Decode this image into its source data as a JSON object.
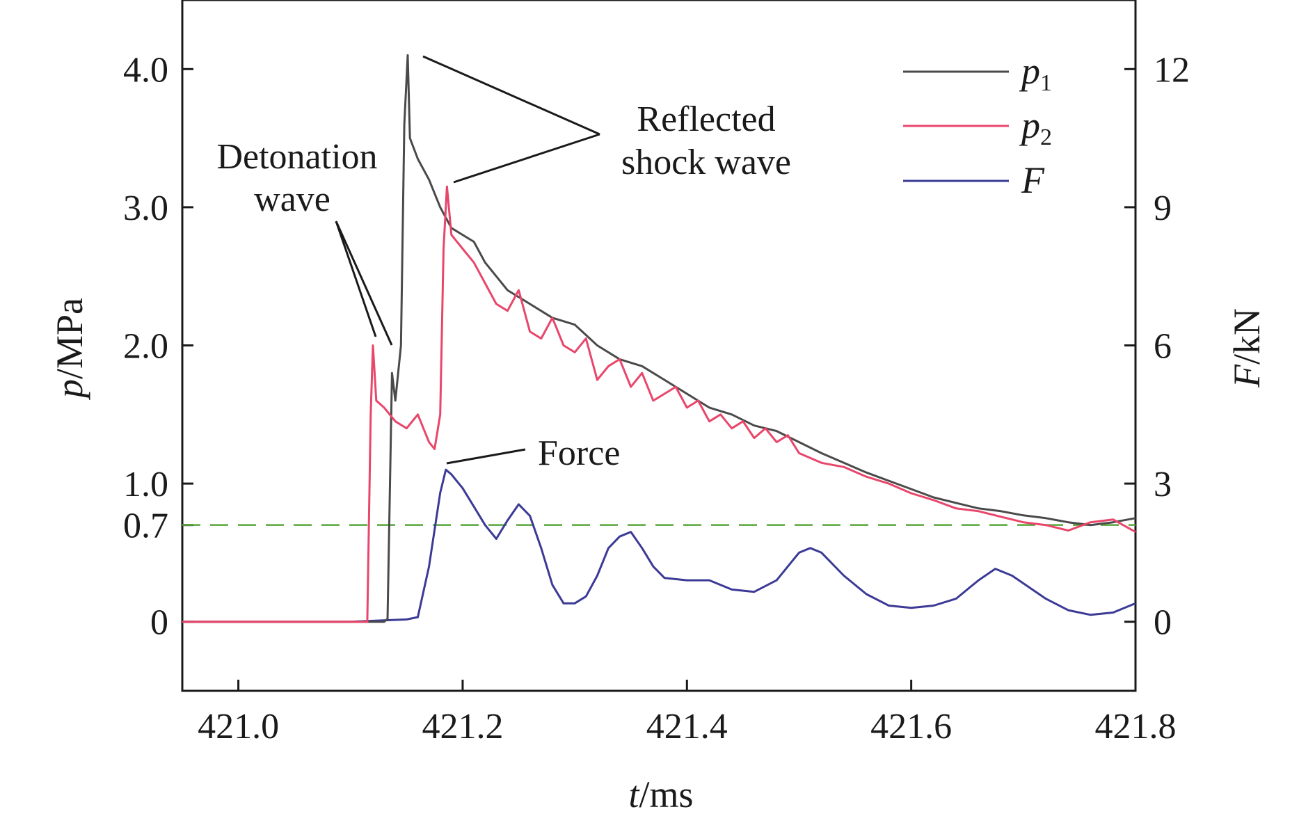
{
  "chart_data": {
    "type": "line",
    "x_axis": {
      "var": "t",
      "unit": "/ms",
      "lim": [
        420.95,
        421.8
      ],
      "ticks": [
        421.0,
        421.2,
        421.4,
        421.6,
        421.8
      ],
      "tick_labels": [
        "421.0",
        "421.2",
        "421.4",
        "421.6",
        "421.8"
      ]
    },
    "y_left": {
      "var": "p",
      "unit": "/MPa",
      "lim": [
        -0.5,
        4.5
      ],
      "ticks": [
        0,
        0.7,
        1.0,
        2.0,
        3.0,
        4.0
      ],
      "tick_labels": [
        "0",
        "0.7",
        "1.0",
        "2.0",
        "3.0",
        "4.0"
      ]
    },
    "y_right": {
      "var": "F",
      "unit": "/kN",
      "lim": [
        -1.5,
        13.5
      ],
      "ticks": [
        0,
        3,
        6,
        9,
        12
      ],
      "tick_labels": [
        "0",
        "3",
        "6",
        "9",
        "12"
      ]
    },
    "reference_line": {
      "y": 0.7,
      "axis": "left",
      "style": "dashed",
      "color": "#5aa83c"
    },
    "legend_position": "top-right",
    "series": [
      {
        "name": "p",
        "subscript": "1",
        "axis": "left",
        "color": "#4a4a4a",
        "points": [
          [
            420.95,
            0.0
          ],
          [
            421.13,
            0.0
          ],
          [
            421.133,
            0.02
          ],
          [
            421.137,
            1.8
          ],
          [
            421.14,
            1.6
          ],
          [
            421.145,
            2.0
          ],
          [
            421.148,
            3.6
          ],
          [
            421.151,
            4.1
          ],
          [
            421.153,
            3.5
          ],
          [
            421.16,
            3.35
          ],
          [
            421.17,
            3.2
          ],
          [
            421.18,
            3.0
          ],
          [
            421.19,
            2.85
          ],
          [
            421.2,
            2.8
          ],
          [
            421.21,
            2.75
          ],
          [
            421.22,
            2.6
          ],
          [
            421.24,
            2.4
          ],
          [
            421.26,
            2.3
          ],
          [
            421.28,
            2.2
          ],
          [
            421.3,
            2.15
          ],
          [
            421.32,
            2.0
          ],
          [
            421.34,
            1.9
          ],
          [
            421.36,
            1.85
          ],
          [
            421.38,
            1.75
          ],
          [
            421.4,
            1.65
          ],
          [
            421.42,
            1.55
          ],
          [
            421.44,
            1.5
          ],
          [
            421.46,
            1.42
          ],
          [
            421.48,
            1.38
          ],
          [
            421.5,
            1.3
          ],
          [
            421.52,
            1.22
          ],
          [
            421.54,
            1.15
          ],
          [
            421.56,
            1.08
          ],
          [
            421.58,
            1.02
          ],
          [
            421.6,
            0.96
          ],
          [
            421.62,
            0.9
          ],
          [
            421.64,
            0.86
          ],
          [
            421.66,
            0.82
          ],
          [
            421.68,
            0.8
          ],
          [
            421.7,
            0.77
          ],
          [
            421.72,
            0.75
          ],
          [
            421.74,
            0.72
          ],
          [
            421.76,
            0.7
          ],
          [
            421.78,
            0.72
          ],
          [
            421.8,
            0.75
          ]
        ]
      },
      {
        "name": "p",
        "subscript": "2",
        "axis": "left",
        "color": "#e8466b",
        "points": [
          [
            420.95,
            0.0
          ],
          [
            421.1,
            0.0
          ],
          [
            421.115,
            0.0
          ],
          [
            421.118,
            1.5
          ],
          [
            421.12,
            2.0
          ],
          [
            421.123,
            1.6
          ],
          [
            421.13,
            1.55
          ],
          [
            421.14,
            1.45
          ],
          [
            421.15,
            1.4
          ],
          [
            421.16,
            1.5
          ],
          [
            421.17,
            1.3
          ],
          [
            421.175,
            1.25
          ],
          [
            421.18,
            1.5
          ],
          [
            421.183,
            2.7
          ],
          [
            421.186,
            3.15
          ],
          [
            421.19,
            2.8
          ],
          [
            421.2,
            2.7
          ],
          [
            421.21,
            2.6
          ],
          [
            421.22,
            2.45
          ],
          [
            421.23,
            2.3
          ],
          [
            421.24,
            2.25
          ],
          [
            421.25,
            2.4
          ],
          [
            421.26,
            2.1
          ],
          [
            421.27,
            2.05
          ],
          [
            421.28,
            2.2
          ],
          [
            421.29,
            2.0
          ],
          [
            421.3,
            1.95
          ],
          [
            421.31,
            2.05
          ],
          [
            421.32,
            1.75
          ],
          [
            421.33,
            1.85
          ],
          [
            421.34,
            1.9
          ],
          [
            421.35,
            1.7
          ],
          [
            421.36,
            1.8
          ],
          [
            421.37,
            1.6
          ],
          [
            421.38,
            1.65
          ],
          [
            421.39,
            1.7
          ],
          [
            421.4,
            1.55
          ],
          [
            421.41,
            1.6
          ],
          [
            421.42,
            1.45
          ],
          [
            421.43,
            1.5
          ],
          [
            421.44,
            1.4
          ],
          [
            421.45,
            1.45
          ],
          [
            421.46,
            1.33
          ],
          [
            421.47,
            1.4
          ],
          [
            421.48,
            1.3
          ],
          [
            421.49,
            1.35
          ],
          [
            421.5,
            1.22
          ],
          [
            421.52,
            1.15
          ],
          [
            421.54,
            1.12
          ],
          [
            421.56,
            1.05
          ],
          [
            421.58,
            1.0
          ],
          [
            421.6,
            0.93
          ],
          [
            421.62,
            0.88
          ],
          [
            421.64,
            0.82
          ],
          [
            421.66,
            0.8
          ],
          [
            421.68,
            0.76
          ],
          [
            421.7,
            0.72
          ],
          [
            421.72,
            0.7
          ],
          [
            421.74,
            0.66
          ],
          [
            421.76,
            0.72
          ],
          [
            421.78,
            0.74
          ],
          [
            421.8,
            0.65
          ]
        ]
      },
      {
        "name": "F",
        "subscript": "",
        "axis": "right",
        "color": "#3b3a96",
        "points": [
          [
            420.95,
            0.0
          ],
          [
            421.1,
            0.0
          ],
          [
            421.15,
            0.05
          ],
          [
            421.16,
            0.1
          ],
          [
            421.17,
            1.2
          ],
          [
            421.18,
            2.8
          ],
          [
            421.185,
            3.3
          ],
          [
            421.19,
            3.2
          ],
          [
            421.2,
            2.9
          ],
          [
            421.21,
            2.5
          ],
          [
            421.22,
            2.1
          ],
          [
            421.23,
            1.8
          ],
          [
            421.24,
            2.2
          ],
          [
            421.25,
            2.55
          ],
          [
            421.26,
            2.3
          ],
          [
            421.27,
            1.6
          ],
          [
            421.28,
            0.8
          ],
          [
            421.29,
            0.4
          ],
          [
            421.3,
            0.4
          ],
          [
            421.31,
            0.55
          ],
          [
            421.32,
            1.0
          ],
          [
            421.33,
            1.6
          ],
          [
            421.34,
            1.85
          ],
          [
            421.35,
            1.95
          ],
          [
            421.36,
            1.6
          ],
          [
            421.37,
            1.2
          ],
          [
            421.38,
            0.95
          ],
          [
            421.4,
            0.9
          ],
          [
            421.42,
            0.9
          ],
          [
            421.44,
            0.7
          ],
          [
            421.46,
            0.65
          ],
          [
            421.48,
            0.9
          ],
          [
            421.5,
            1.5
          ],
          [
            421.51,
            1.6
          ],
          [
            421.52,
            1.5
          ],
          [
            421.54,
            1.0
          ],
          [
            421.56,
            0.6
          ],
          [
            421.58,
            0.35
          ],
          [
            421.6,
            0.3
          ],
          [
            421.62,
            0.35
          ],
          [
            421.64,
            0.5
          ],
          [
            421.66,
            0.9
          ],
          [
            421.675,
            1.15
          ],
          [
            421.69,
            1.0
          ],
          [
            421.72,
            0.5
          ],
          [
            421.74,
            0.25
          ],
          [
            421.76,
            0.15
          ],
          [
            421.78,
            0.2
          ],
          [
            421.8,
            0.4
          ]
        ]
      }
    ],
    "annotations": [
      {
        "lines": [
          "Detonation",
          "wave"
        ]
      },
      {
        "lines": [
          "Reflected",
          "shock wave"
        ]
      },
      {
        "lines": [
          "Force"
        ]
      }
    ]
  }
}
